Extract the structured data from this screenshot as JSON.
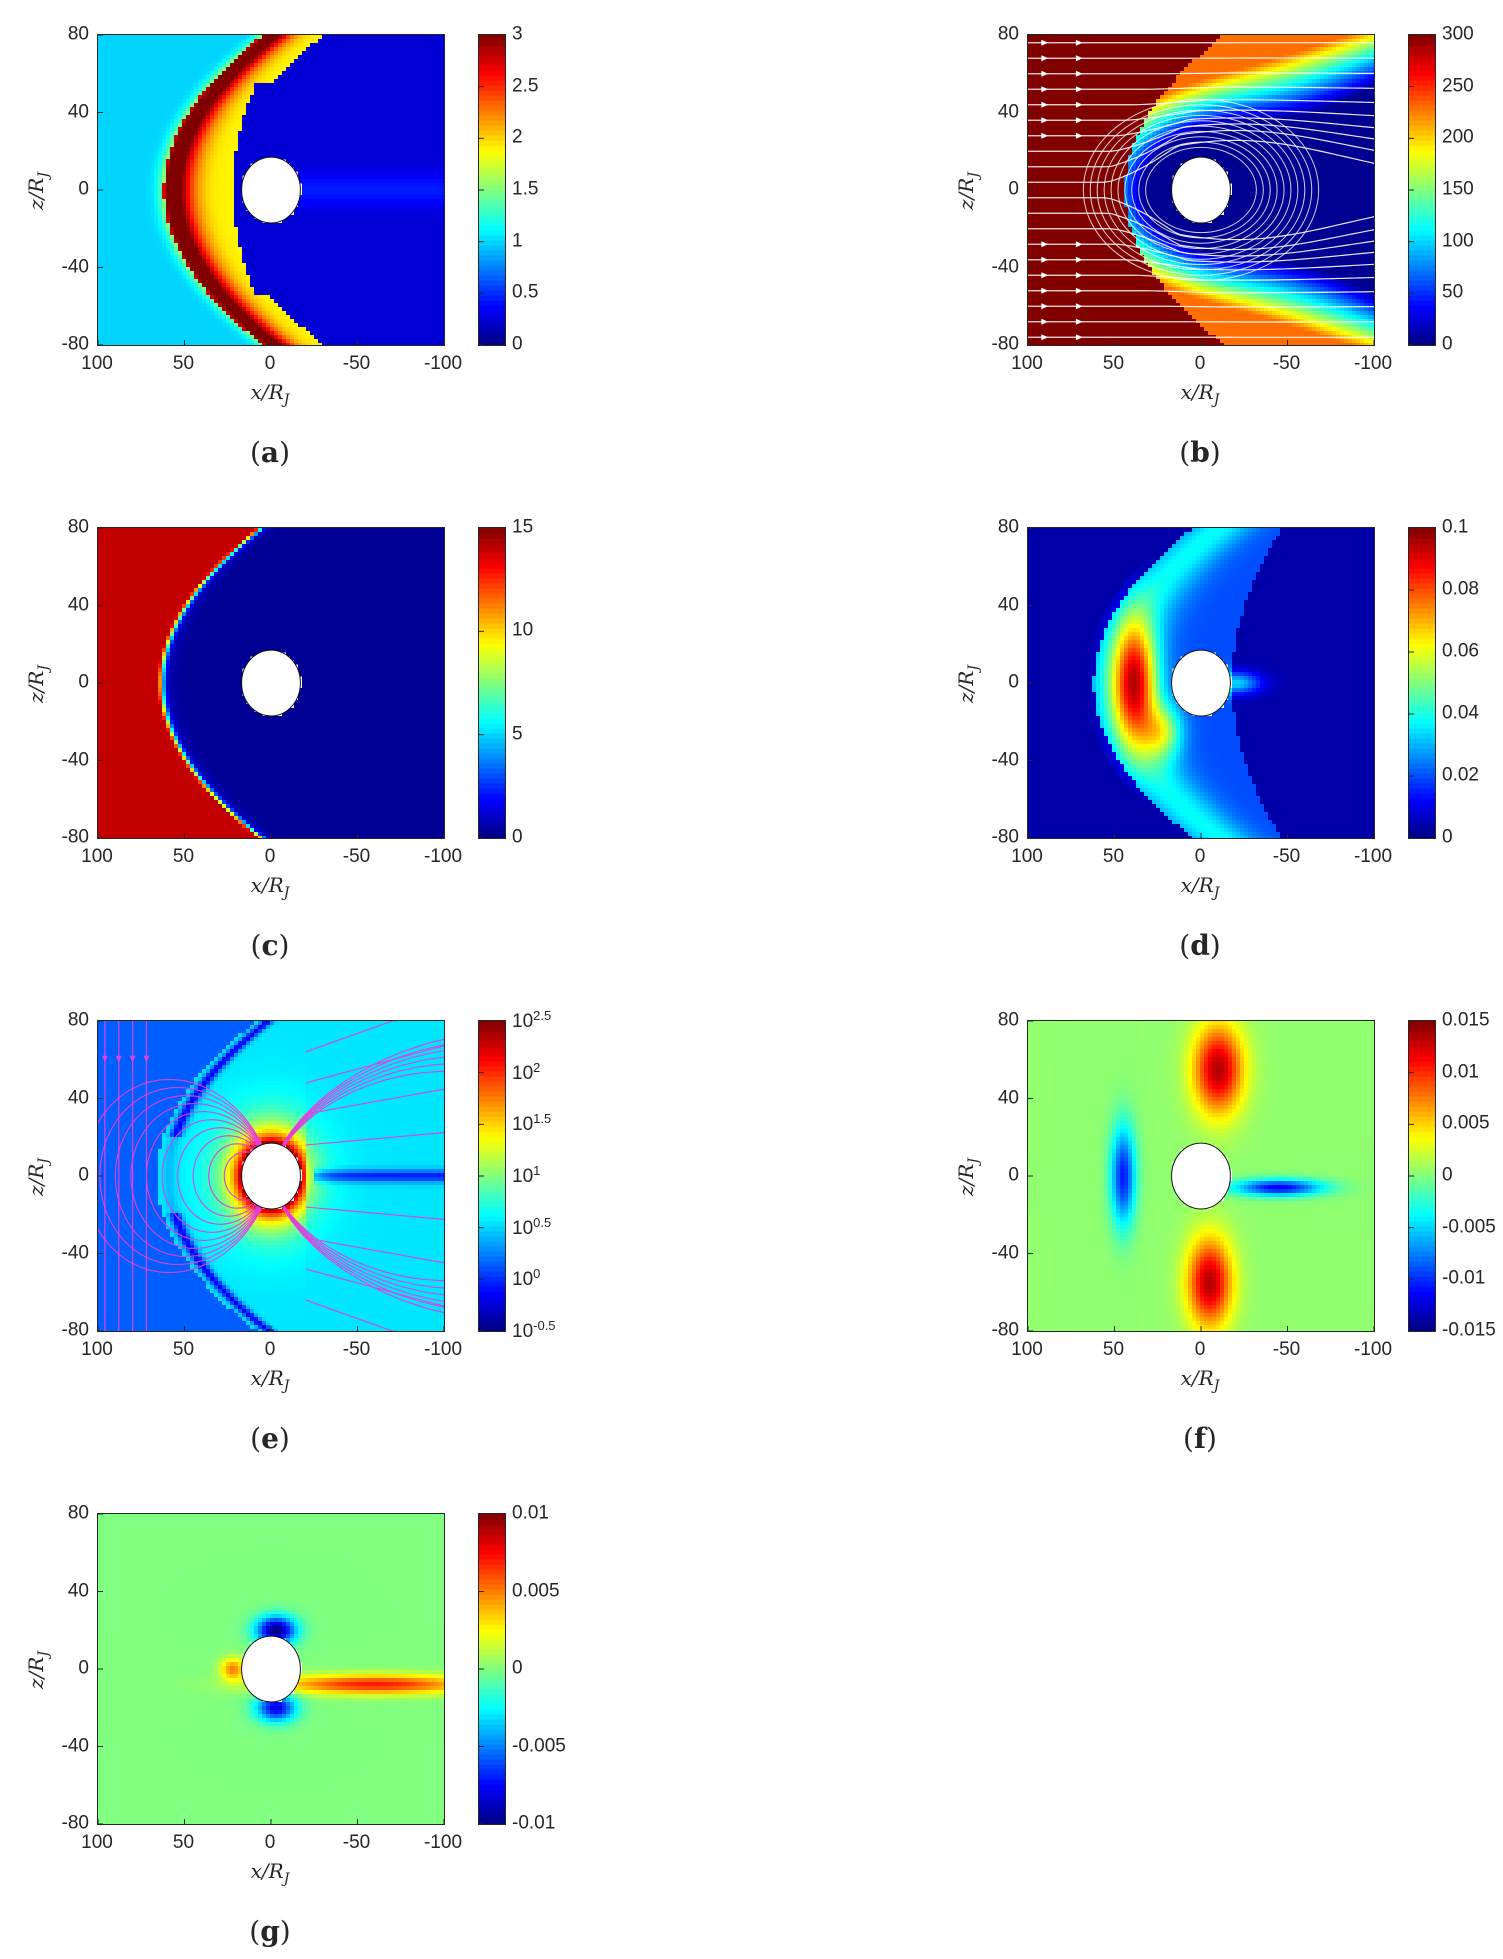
{
  "chart_data": [
    {
      "panel": "a",
      "type": "heatmap",
      "xlabel": "x/R_J",
      "ylabel": "z/R_J",
      "xlim": [
        100,
        -100
      ],
      "ylim": [
        -80,
        80
      ],
      "xticks": [
        "100",
        "50",
        "0",
        "-50",
        "-100"
      ],
      "yticks": [
        "80",
        "40",
        "0",
        "-40",
        "-80"
      ],
      "colorbar": {
        "range": [
          0,
          3
        ],
        "ticks": [
          "0",
          "0.5",
          "1",
          "1.5",
          "2",
          "2.5",
          "3"
        ],
        "colormap": "jet"
      },
      "overlay": "none",
      "features": "upstream value 1; bow shock arc near x=50 peaking ~2.8; magnetosheath ~2; magnetosphere ~0.2"
    },
    {
      "panel": "b",
      "type": "heatmap",
      "xlabel": "x/R_J",
      "ylabel": "z/R_J",
      "xlim": [
        100,
        -100
      ],
      "ylim": [
        -80,
        80
      ],
      "xticks": [
        "100",
        "50",
        "0",
        "-50",
        "-100"
      ],
      "yticks": [
        "80",
        "40",
        "0",
        "-40",
        "-80"
      ],
      "colorbar": {
        "range": [
          0,
          300
        ],
        "ticks": [
          "0",
          "50",
          "100",
          "150",
          "200",
          "250",
          "300"
        ],
        "colormap": "jet"
      },
      "overlay": "white streamlines with arrows",
      "features": "upstream ~300 (dark red); decreasing downstream of shock; ~0 near planet"
    },
    {
      "panel": "c",
      "type": "heatmap",
      "xlabel": "x/R_J",
      "ylabel": "z/R_J",
      "xlim": [
        100,
        -100
      ],
      "ylim": [
        -80,
        80
      ],
      "xticks": [
        "100",
        "50",
        "0",
        "-50",
        "-100"
      ],
      "yticks": [
        "80",
        "40",
        "0",
        "-40",
        "-80"
      ],
      "colorbar": {
        "range": [
          0,
          15
        ],
        "ticks": [
          "0",
          "5",
          "10",
          "15"
        ],
        "colormap": "jet"
      },
      "overlay": "none",
      "features": "upstream ~14 (dark red) sharply dropping to ~0.5 inside shock near x=65"
    },
    {
      "panel": "d",
      "type": "heatmap",
      "xlabel": "x/R_J",
      "ylabel": "z/R_J",
      "xlim": [
        100,
        -100
      ],
      "ylim": [
        -80,
        80
      ],
      "xticks": [
        "100",
        "50",
        "0",
        "-50",
        "-100"
      ],
      "yticks": [
        "80",
        "40",
        "0",
        "-40",
        "-80"
      ],
      "colorbar": {
        "range": [
          0,
          0.1
        ],
        "ticks": [
          "0",
          "0.02",
          "0.04",
          "0.06",
          "0.08",
          "0.1"
        ],
        "colormap": "jet"
      },
      "overlay": "none",
      "features": "background ~0.005; magnetosheath ~0.04; peak ~0.08 near x=40,z=0"
    },
    {
      "panel": "e",
      "type": "heatmap",
      "xlabel": "x/R_J",
      "ylabel": "z/R_J",
      "xlim": [
        100,
        -100
      ],
      "ylim": [
        -80,
        80
      ],
      "xticks": [
        "100",
        "50",
        "0",
        "-50",
        "-100"
      ],
      "yticks": [
        "80",
        "40",
        "0",
        "-40",
        "-80"
      ],
      "colorbar": {
        "range": [
          -0.5,
          2.5
        ],
        "scale": "log10",
        "ticks": [
          "-0.5",
          "0",
          "0.5",
          "1",
          "1.5",
          "2",
          "2.5"
        ],
        "tick_base": "10",
        "colormap": "jet"
      },
      "overlay": "magenta field lines with arrows",
      "features": "upstream ~10^0.2; magnetosphere ~10^0.7; ~10^2.5 at planet surface"
    },
    {
      "panel": "f",
      "type": "heatmap",
      "xlabel": "x/R_J",
      "ylabel": "z/R_J",
      "xlim": [
        100,
        -100
      ],
      "ylim": [
        -80,
        80
      ],
      "xticks": [
        "100",
        "50",
        "0",
        "-50",
        "-100"
      ],
      "yticks": [
        "80",
        "40",
        "0",
        "-40",
        "-80"
      ],
      "colorbar": {
        "range": [
          -0.015,
          0.015
        ],
        "ticks": [
          "-0.015",
          "-0.01",
          "-0.005",
          "0",
          "0.005",
          "0.01",
          "0.015"
        ],
        "colormap": "jet"
      },
      "overlay": "none",
      "features": "background ~0; positive arcs along magnetopause ~0.013; negative near upstream shock and tail current sheet ~-0.012"
    },
    {
      "panel": "g",
      "type": "heatmap",
      "xlabel": "x/R_J",
      "ylabel": "z/R_J",
      "xlim": [
        100,
        -100
      ],
      "ylim": [
        -80,
        80
      ],
      "xticks": [
        "100",
        "50",
        "0",
        "-50",
        "-100"
      ],
      "yticks": [
        "80",
        "40",
        "0",
        "-40",
        "-80"
      ],
      "colorbar": {
        "range": [
          -0.01,
          0.01
        ],
        "ticks": [
          "-0.01",
          "-0.005",
          "0",
          "0.005",
          "0.01"
        ],
        "colormap": "jet"
      },
      "overlay": "none",
      "features": "background ~0; negative lobes above/below planet ~-0.01; positive tail current sheet ~0.008"
    }
  ]
}
